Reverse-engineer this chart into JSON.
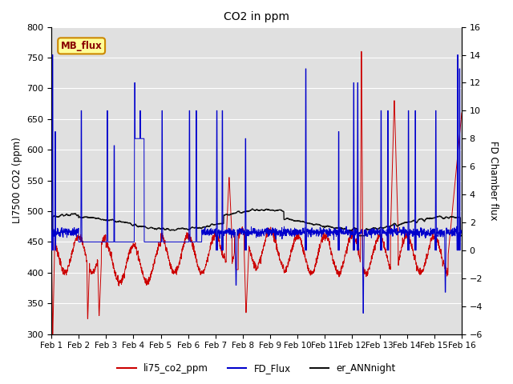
{
  "title": "CO2 in ppm",
  "ylabel_left": "LI7500 CO2 (ppm)",
  "ylabel_right": "FD Chamber flux",
  "ylim_left": [
    300,
    800
  ],
  "ylim_right": [
    -6,
    16
  ],
  "yticks_left": [
    300,
    350,
    400,
    450,
    500,
    550,
    600,
    650,
    700,
    750,
    800
  ],
  "yticks_right": [
    -6,
    -4,
    -2,
    0,
    2,
    4,
    6,
    8,
    10,
    12,
    14,
    16
  ],
  "xtick_labels": [
    "Feb 1",
    "Feb 2",
    "Feb 3",
    "Feb 4",
    "Feb 5",
    "Feb 6",
    "Feb 7",
    "Feb 8",
    "Feb 9",
    "Feb 10",
    "Feb 11",
    "Feb 12",
    "Feb 13",
    "Feb 14",
    "Feb 15",
    "Feb 16"
  ],
  "n_days": 15,
  "color_red": "#cc0000",
  "color_blue": "#0000cc",
  "color_black": "#111111",
  "bg_color": "#e0e0e0",
  "legend_labels": [
    "li75_co2_ppm",
    "FD_Flux",
    "er_ANNnight"
  ],
  "mb_flux_label": "MB_flux",
  "mb_flux_bg": "#ffff99",
  "mb_flux_border": "#cc8800"
}
